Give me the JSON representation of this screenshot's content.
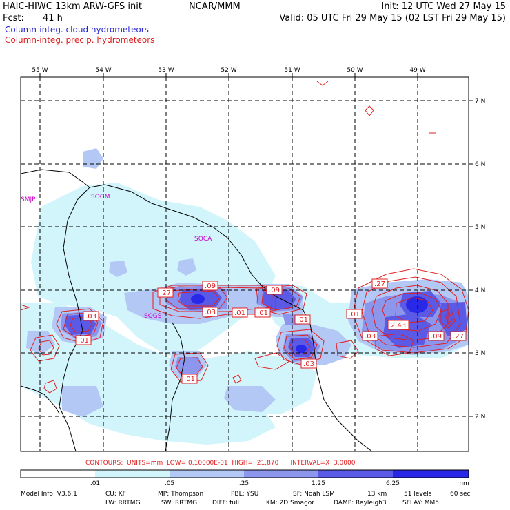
{
  "header": {
    "model": "HAIC-HIWC 13km ARW-GFS init",
    "org": "NCAR/MMM",
    "init": "Init: 12 UTC Wed 27 May 15",
    "fcst_label": "Fcst:",
    "fcst_value": "41 h",
    "valid": "Valid: 05 UTC Fri 29 May 15 (02 LST Fri 29 May 15)",
    "field1": "Column-integ. cloud hydrometeors",
    "field2": "Column-integ. precip. hydrometeors",
    "field1_color": "#2424d4",
    "field2_color": "#e02020"
  },
  "axes": {
    "lon_labels": [
      "55 W",
      "54 W",
      "53 W",
      "52 W",
      "51 W",
      "50 W",
      "49 W"
    ],
    "lat_labels": [
      "7 N",
      "6 N",
      "5 N",
      "4 N",
      "3 N",
      "2 N"
    ]
  },
  "places": [
    "SMJP",
    "SOGM",
    "SOCA",
    "SOGS"
  ],
  "contour_labels": [
    ".27",
    ".09",
    ".09",
    ".03",
    ".01",
    ".01",
    ".03",
    ".01",
    ".27",
    ".01",
    "2.43",
    ".03",
    ".09",
    ".27",
    ".03",
    ".01",
    ".01"
  ],
  "contours_line": "CONTOURS:  UNITS=mm  LOW= 0.10000E-01  HIGH=  21.870      INTERVAL=X  3.0000",
  "colorbar": {
    "ticks": [
      ".01",
      ".05",
      ".25",
      "1.25",
      "6.25"
    ],
    "unit": "mm",
    "colors": [
      "#ffffff",
      "#d2f5fc",
      "#b4c8f5",
      "#8c96ec",
      "#5a5ae6",
      "#2828e6"
    ]
  },
  "footer": {
    "row1": [
      "Model Info: V3.6.1",
      "CU: KF",
      "MP: Thompson",
      "PBL: YSU",
      "SF: Noah LSM",
      "13 km",
      "51 levels",
      "60 sec"
    ],
    "row2": [
      "LW: RRTMG",
      "SW: RRTMG",
      "DIFF: full",
      "KM: 2D Smagor",
      "DAMP: Rayleigh3",
      "SFLAY: MM5"
    ]
  }
}
